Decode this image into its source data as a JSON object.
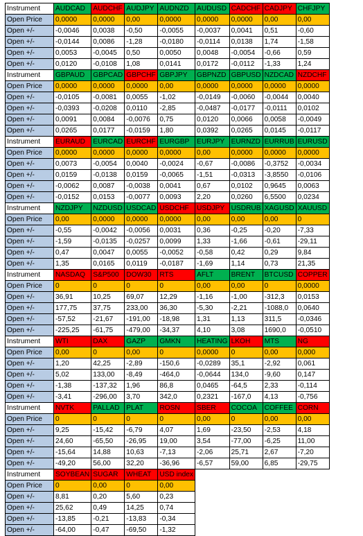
{
  "row_labels": {
    "instrument": "Instrument",
    "open_price": "Open Price",
    "open_change": "Open +/-"
  },
  "colors": {
    "up": "#00b050",
    "down": "#ff0000",
    "open_price_fill": "#ffc000",
    "label_fill": "#b8cce4"
  },
  "blocks": [
    {
      "instruments": [
        {
          "name": "AUDCAD",
          "color": "green"
        },
        {
          "name": "AUDCHF",
          "color": "red"
        },
        {
          "name": "AUDJPY",
          "color": "green"
        },
        {
          "name": "AUDNZD",
          "color": "green"
        },
        {
          "name": "AUDUSD",
          "color": "green"
        },
        {
          "name": "CADCHF",
          "color": "red"
        },
        {
          "name": "CADJPY",
          "color": "red"
        },
        {
          "name": "CHFJPY",
          "color": "green"
        }
      ],
      "open_price": [
        "0,0000",
        "0,0000",
        "0,00",
        "0,0000",
        "0,0000",
        "0,0000",
        "0,00",
        "0,00"
      ],
      "changes": [
        [
          "-0,0046",
          "0,0038",
          "-0,50",
          "-0,0055",
          "-0,0037",
          "0,0041",
          "0,51",
          "-0,60"
        ],
        [
          "-0,0144",
          "0,0086",
          "-1,28",
          "-0,0180",
          "-0,0114",
          "0,0138",
          "1,74",
          "-1,58"
        ],
        [
          "0,0053",
          "-0,0045",
          "0,50",
          "0,0050",
          "0,0048",
          "-0,0054",
          "-0,66",
          "0,59"
        ],
        [
          "0,0120",
          "-0,0108",
          "1,08",
          "0,0141",
          "0,0172",
          "-0,0112",
          "-1,33",
          "1,24"
        ]
      ]
    },
    {
      "instruments": [
        {
          "name": "GBPAUD",
          "color": "green"
        },
        {
          "name": "GBPCAD",
          "color": "green"
        },
        {
          "name": "GBPCHF",
          "color": "red"
        },
        {
          "name": "GBPJPY",
          "color": "green"
        },
        {
          "name": "GBPNZD",
          "color": "green"
        },
        {
          "name": "GBPUSD",
          "color": "green"
        },
        {
          "name": "NZDCAD",
          "color": "green"
        },
        {
          "name": "NZDCHF",
          "color": "red"
        }
      ],
      "open_price": [
        "0,0000",
        "0,0000",
        "0,0000",
        "0,00",
        "0,0000",
        "0,0000",
        "0,0000",
        "0,0000"
      ],
      "changes": [
        [
          "-0,0105",
          "-0,0081",
          "0,0055",
          "-1,02",
          "-0,0149",
          "-0,0060",
          "-0,0044",
          "0,0040"
        ],
        [
          "-0,0393",
          "-0,0208",
          "0,0110",
          "-2,85",
          "-0,0487",
          "-0,0177",
          "-0,0111",
          "0,0102"
        ],
        [
          "0,0091",
          "0,0084",
          "-0,0076",
          "0,75",
          "0,0120",
          "0,0066",
          "0,0058",
          "-0,0049"
        ],
        [
          "0,0265",
          "0,0177",
          "-0,0159",
          "1,80",
          "0,0392",
          "0,0265",
          "0,0145",
          "-0,0117"
        ]
      ]
    },
    {
      "instruments": [
        {
          "name": "EURAUD",
          "color": "red"
        },
        {
          "name": "EURCAD",
          "color": "green"
        },
        {
          "name": "EURCHF",
          "color": "red"
        },
        {
          "name": "EURGBP",
          "color": "green"
        },
        {
          "name": "EURJPY",
          "color": "green"
        },
        {
          "name": "EURNZD",
          "color": "green"
        },
        {
          "name": "EURRUB",
          "color": "green"
        },
        {
          "name": "EURUSD",
          "color": "green"
        }
      ],
      "open_price": [
        "0,0000",
        "0,0000",
        "0,0000",
        "0,0000",
        "0,00",
        "0,0000",
        "0,0000",
        "0,0000"
      ],
      "changes": [
        [
          "0,0073",
          "-0,0054",
          "0,0040",
          "-0,0024",
          "-0,67",
          "-0,0086",
          "-0,3752",
          "-0,0034"
        ],
        [
          "0,0159",
          "-0,0138",
          "0,0159",
          "-0,0065",
          "-1,51",
          "-0,0313",
          "-3,8550",
          "-0,0106"
        ],
        [
          "-0,0062",
          "0,0087",
          "-0,0038",
          "0,0041",
          "0,67",
          "0,0102",
          "0,9645",
          "0,0063"
        ],
        [
          "-0,0152",
          "0,0153",
          "-0,0077",
          "0,0093",
          "2,20",
          "0,0260",
          "6,5500",
          "0,0234"
        ]
      ]
    },
    {
      "instruments": [
        {
          "name": "NZDJPY",
          "color": "green"
        },
        {
          "name": "NZDUSD",
          "color": "green"
        },
        {
          "name": "USDCAD",
          "color": "green"
        },
        {
          "name": "USDCHF",
          "color": "red"
        },
        {
          "name": "USDJPY",
          "color": "red"
        },
        {
          "name": "USDRUB",
          "color": "green"
        },
        {
          "name": "XAGUSD",
          "color": "green"
        },
        {
          "name": "XAUUSD",
          "color": "green"
        }
      ],
      "open_price": [
        "0,00",
        "0,0000",
        "0,0000",
        "0,0000",
        "0,00",
        "0,00",
        "0,00",
        "0"
      ],
      "changes": [
        [
          "-0,55",
          "-0,0042",
          "-0,0056",
          "0,0031",
          "0,36",
          "-0,25",
          "-0,20",
          "-7,33"
        ],
        [
          "-1,59",
          "-0,0135",
          "-0,0257",
          "0,0099",
          "1,33",
          "-1,66",
          "-0,61",
          "-29,11"
        ],
        [
          "0,47",
          "0,0047",
          "0,0055",
          "-0,0052",
          "-0,58",
          "0,42",
          "0,29",
          "9,84"
        ],
        [
          "1,35",
          "0,0165",
          "0,0119",
          "-0,0187",
          "-1,69",
          "1,14",
          "0,73",
          "21,35"
        ]
      ]
    },
    {
      "instruments": [
        {
          "name": "NASDAQ",
          "color": "red"
        },
        {
          "name": "S&P500",
          "color": "red"
        },
        {
          "name": "DOW30",
          "color": "red"
        },
        {
          "name": "RTS",
          "color": "red"
        },
        {
          "name": "AFLT",
          "color": "green"
        },
        {
          "name": "BRENT",
          "color": "green"
        },
        {
          "name": "BTCUSD",
          "color": "green"
        },
        {
          "name": "COPPER",
          "color": "red"
        }
      ],
      "open_price": [
        "0",
        "0",
        "0",
        "0",
        "0,00",
        "0,00",
        "0",
        "0,0000"
      ],
      "changes": [
        [
          "36,91",
          "10,25",
          "69,07",
          "12,29",
          "-1,16",
          "-1,00",
          "-312,3",
          "0,0153"
        ],
        [
          "177,75",
          "37,75",
          "233,00",
          "36,30",
          "-5,30",
          "-2,21",
          "-1088,0",
          "0,0640"
        ],
        [
          "-57,52",
          "-21,67",
          "-191,00",
          "-18,98",
          "1,31",
          "1,13",
          "311,5",
          "-0,0346"
        ],
        [
          "-225,25",
          "-61,75",
          "-479,00",
          "-34,37",
          "4,10",
          "3,08",
          "1690,0",
          "-0,0510"
        ]
      ]
    },
    {
      "instruments": [
        {
          "name": "WTI",
          "color": "red"
        },
        {
          "name": "DAX",
          "color": "red"
        },
        {
          "name": "GAZP",
          "color": "green"
        },
        {
          "name": "GMKN",
          "color": "green"
        },
        {
          "name": "HEATING",
          "color": "green"
        },
        {
          "name": "LKOH",
          "color": "red"
        },
        {
          "name": "MTS",
          "color": "green"
        },
        {
          "name": "NG",
          "color": "red"
        }
      ],
      "open_price": [
        "0,00",
        "0",
        "0,00",
        "0",
        "0,0000",
        "0",
        "0,00",
        "0,000"
      ],
      "changes": [
        [
          "1,20",
          "42,25",
          "-2,89",
          "-150,6",
          "-0,0289",
          "35,1",
          "-2,92",
          "0,061"
        ],
        [
          "5,02",
          "133,00",
          "-8,49",
          "-464,0",
          "-0,0644",
          "134,0",
          "-9,60",
          "0,147"
        ],
        [
          "-1,38",
          "-137,32",
          "1,96",
          "86,8",
          "0,0465",
          "-64,5",
          "2,33",
          "-0,114"
        ],
        [
          "-3,41",
          "-296,00",
          "3,70",
          "342,0",
          "0,2321",
          "-167,0",
          "4,13",
          "-0,756"
        ]
      ]
    },
    {
      "instruments": [
        {
          "name": "NVTK",
          "color": "red"
        },
        {
          "name": "PALLAD",
          "color": "green"
        },
        {
          "name": "PLAT",
          "color": "green"
        },
        {
          "name": "ROSN",
          "color": "red"
        },
        {
          "name": "SBER",
          "color": "red"
        },
        {
          "name": "COCOA",
          "color": "green"
        },
        {
          "name": "COFFEE",
          "color": "green"
        },
        {
          "name": "CORN",
          "color": "red"
        }
      ],
      "open_price": [
        "0",
        "0",
        "0",
        "0",
        "0,00",
        "0",
        "0,00",
        "0,00"
      ],
      "changes": [
        [
          "9,25",
          "-15,42",
          "-6,79",
          "4,07",
          "1,69",
          "-23,50",
          "-2,53",
          "4,18"
        ],
        [
          "24,60",
          "-65,50",
          "-26,95",
          "19,00",
          "3,54",
          "-77,00",
          "-6,25",
          "11,00"
        ],
        [
          "-15,64",
          "14,88",
          "10,63",
          "-7,13",
          "-2,06",
          "25,71",
          "2,67",
          "-7,20"
        ],
        [
          "-49,20",
          "56,00",
          "32,20",
          "-36,96",
          "-6,57",
          "59,00",
          "6,85",
          "-29,75"
        ]
      ]
    },
    {
      "instruments": [
        {
          "name": "SOYBEAN",
          "color": "red"
        },
        {
          "name": "SUGAR",
          "color": "red"
        },
        {
          "name": "WHEAT",
          "color": "red"
        },
        {
          "name": "USD index",
          "color": "red"
        }
      ],
      "open_price": [
        "0",
        "0,00",
        "0",
        "0,00"
      ],
      "changes": [
        [
          "8,81",
          "0,20",
          "5,60",
          "0,23"
        ],
        [
          "25,62",
          "0,49",
          "14,25",
          "0,74"
        ],
        [
          "-13,85",
          "-0,21",
          "-13,83",
          "-0,34"
        ],
        [
          "-64,00",
          "-0,47",
          "-69,50",
          "-1,32"
        ]
      ]
    }
  ]
}
